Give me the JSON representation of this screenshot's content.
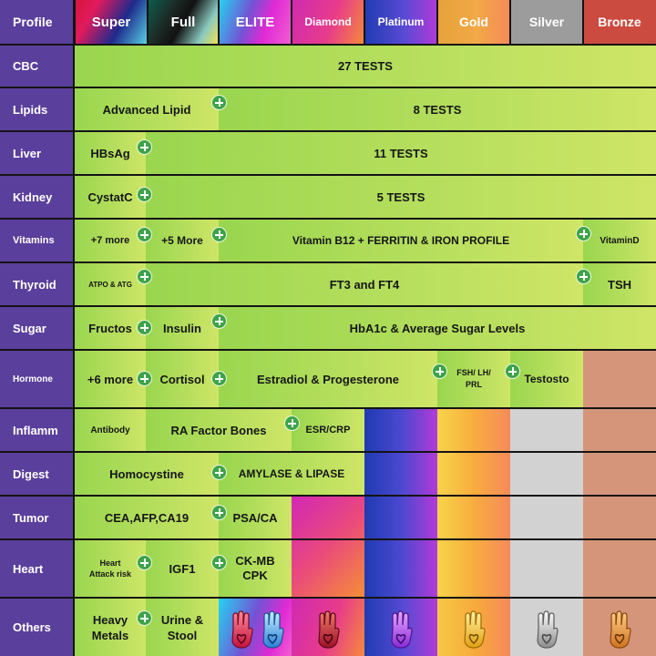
{
  "columns": [
    {
      "label": "Profile"
    },
    {
      "label": "Super"
    },
    {
      "label": "Full"
    },
    {
      "label": "ELITE"
    },
    {
      "label": "Diamond"
    },
    {
      "label": "Platinum"
    },
    {
      "label": "Gold"
    },
    {
      "label": "Silver"
    },
    {
      "label": "Bronze"
    }
  ],
  "rows": [
    {
      "label": "CBC"
    },
    {
      "label": "Lipids"
    },
    {
      "label": "Liver"
    },
    {
      "label": "Kidney"
    },
    {
      "label": "Vitamins"
    },
    {
      "label": "Thyroid"
    },
    {
      "label": "Sugar"
    },
    {
      "label": "Hormone"
    },
    {
      "label": "Inflamm"
    },
    {
      "label": "Digest"
    },
    {
      "label": "Tumor"
    },
    {
      "label": "Heart"
    },
    {
      "label": "Others"
    }
  ],
  "cells": {
    "cbc_all": "27 TESTS",
    "lipids_advanced": "Advanced Lipid",
    "lipids_rest": "8 TESTS",
    "liver_hbsag": "HBsAg",
    "liver_rest": "11 TESTS",
    "kidney_cystatc": "CystatC",
    "kidney_rest": "5 TESTS",
    "vitamins_more7": "+7 more",
    "vitamins_more5": "+5 More",
    "vitamins_b12": "Vitamin B12 + FERRITIN & IRON PROFILE",
    "vitamins_d": "VitaminD",
    "thyroid_atpo": "ATPO & ATG",
    "thyroid_ft": "FT3 and FT4",
    "thyroid_tsh": "TSH",
    "sugar_fructos": "Fructos",
    "sugar_insulin": "Insulin",
    "sugar_hba1c": "HbA1c & Average Sugar Levels",
    "hormone_more6": "+6 more",
    "hormone_cortisol": "Cortisol",
    "hormone_estradiol": "Estradiol & Progesterone",
    "hormone_fsh_1": "FSH/ LH/",
    "hormone_fsh_2": "PRL",
    "hormone_testo": "Testosto",
    "inflamm_antibody": "Antibody",
    "inflamm_ra": "RA Factor Bones",
    "inflamm_esr": "ESR/CRP",
    "digest_homo": "Homocystine",
    "digest_amylase": "AMYLASE & LIPASE",
    "tumor_cea": "CEA,AFP,CA19",
    "tumor_psa": "PSA/CA",
    "heart_attack_1": "Heart",
    "heart_attack_2": "Attack risk",
    "heart_igf1": "IGF1",
    "heart_ckmb_1": "CK-MB",
    "heart_ckmb_2": "CPK",
    "others_heavy_1": "Heavy",
    "others_heavy_2": "Metals",
    "others_urine_1": "Urine &",
    "others_urine_2": "Stool"
  },
  "colors": {
    "row_header": "#5a3f9c",
    "included_green": "#b5de5d",
    "plus_badge": "#3ea34a",
    "bronze_fill": "#d4957a",
    "silver_fill": "#d2d2d2",
    "grid_line": "#141414"
  },
  "icons": {
    "plus": "plus-badge-icon",
    "tier_badge": "hand-heart-icon"
  }
}
